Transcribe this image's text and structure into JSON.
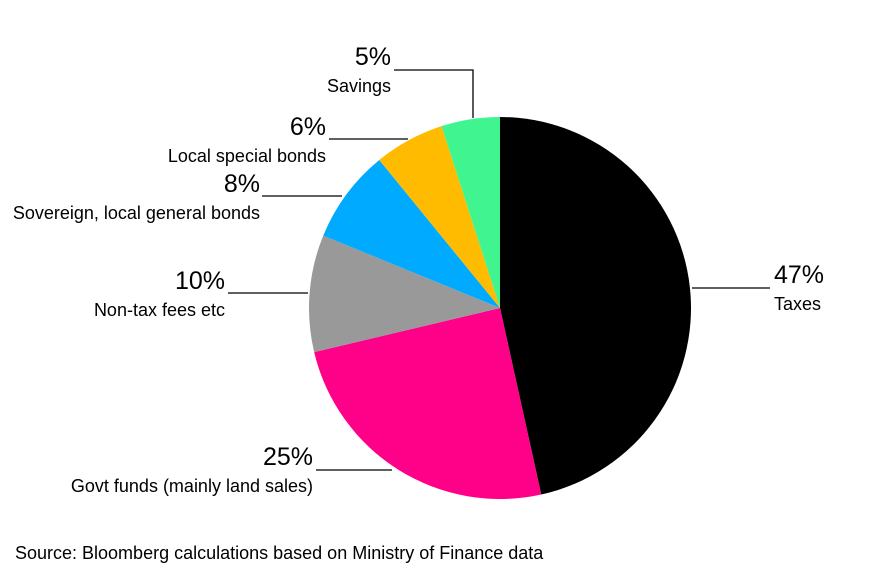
{
  "colors": {
    "Taxes": "#000000",
    "Govt funds (mainly land sales)": "#ff0088",
    "Non-tax fees etc": "#999999",
    "Sovereign, local general bonds": "#00aaff",
    "Local special bonds": "#ffbb00",
    "Savings": "#40f590"
  },
  "chart_data": {
    "type": "pie",
    "slices": [
      {
        "label": "Taxes",
        "value": 47,
        "value_label": "47%"
      },
      {
        "label": "Govt funds (mainly land sales)",
        "value": 25,
        "value_label": "25%"
      },
      {
        "label": "Non-tax fees etc",
        "value": 10,
        "value_label": "10%"
      },
      {
        "label": "Sovereign, local general bonds",
        "value": 8,
        "value_label": "8%"
      },
      {
        "label": "Local special bonds",
        "value": 6,
        "value_label": "6%"
      },
      {
        "label": "Savings",
        "value": 5,
        "value_label": "5%"
      }
    ],
    "start": "12 o'clock, clockwise"
  },
  "source": "Source: Bloomberg calculations based on Ministry of Finance data"
}
